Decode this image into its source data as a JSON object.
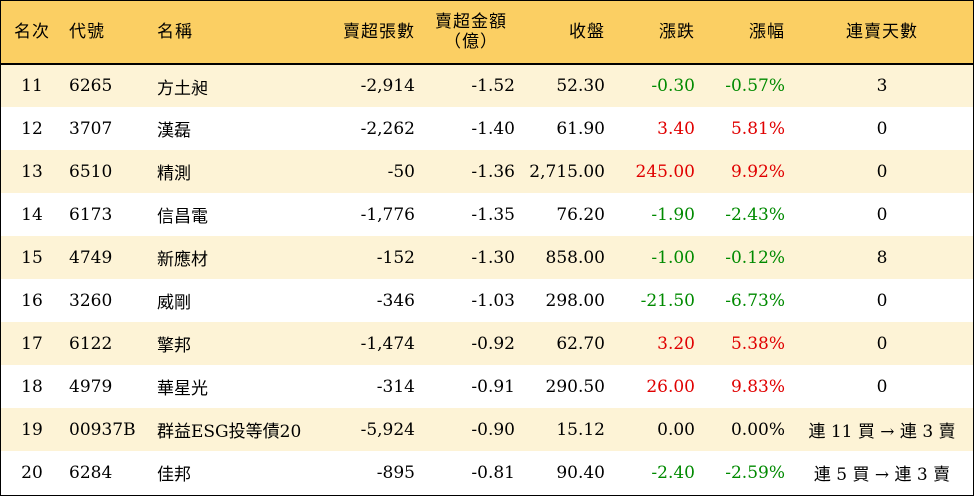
{
  "headers": {
    "rank": "名次",
    "code": "代號",
    "name": "名稱",
    "net_shares": "賣超張數",
    "net_amount_line1": "賣超金額",
    "net_amount_line2": "（億）",
    "close": "收盤",
    "change": "漲跌",
    "change_pct": "漲幅",
    "streak": "連賣天數"
  },
  "rows": [
    {
      "rank": "11",
      "code": "6265",
      "name": "方土昶",
      "net_shares": "-2,914",
      "net_amount": "-1.52",
      "close": "52.30",
      "change": "-0.30",
      "change_pct": "-0.57%",
      "streak": "3",
      "trend": "neg"
    },
    {
      "rank": "12",
      "code": "3707",
      "name": "漢磊",
      "net_shares": "-2,262",
      "net_amount": "-1.40",
      "close": "61.90",
      "change": "3.40",
      "change_pct": "5.81%",
      "streak": "0",
      "trend": "pos"
    },
    {
      "rank": "13",
      "code": "6510",
      "name": "精測",
      "net_shares": "-50",
      "net_amount": "-1.36",
      "close": "2,715.00",
      "change": "245.00",
      "change_pct": "9.92%",
      "streak": "0",
      "trend": "pos"
    },
    {
      "rank": "14",
      "code": "6173",
      "name": "信昌電",
      "net_shares": "-1,776",
      "net_amount": "-1.35",
      "close": "76.20",
      "change": "-1.90",
      "change_pct": "-2.43%",
      "streak": "0",
      "trend": "neg"
    },
    {
      "rank": "15",
      "code": "4749",
      "name": "新應材",
      "net_shares": "-152",
      "net_amount": "-1.30",
      "close": "858.00",
      "change": "-1.00",
      "change_pct": "-0.12%",
      "streak": "8",
      "trend": "neg"
    },
    {
      "rank": "16",
      "code": "3260",
      "name": "威剛",
      "net_shares": "-346",
      "net_amount": "-1.03",
      "close": "298.00",
      "change": "-21.50",
      "change_pct": "-6.73%",
      "streak": "0",
      "trend": "neg"
    },
    {
      "rank": "17",
      "code": "6122",
      "name": "擎邦",
      "net_shares": "-1,474",
      "net_amount": "-0.92",
      "close": "62.70",
      "change": "3.20",
      "change_pct": "5.38%",
      "streak": "0",
      "trend": "pos"
    },
    {
      "rank": "18",
      "code": "4979",
      "name": "華星光",
      "net_shares": "-314",
      "net_amount": "-0.91",
      "close": "290.50",
      "change": "26.00",
      "change_pct": "9.83%",
      "streak": "0",
      "trend": "pos"
    },
    {
      "rank": "19",
      "code": "00937B",
      "name": "群益ESG投等債20",
      "net_shares": "-5,924",
      "net_amount": "-0.90",
      "close": "15.12",
      "change": "0.00",
      "change_pct": "0.00%",
      "streak": "連 11 買 → 連 3 賣",
      "trend": "zero"
    },
    {
      "rank": "20",
      "code": "6284",
      "name": "佳邦",
      "net_shares": "-895",
      "net_amount": "-0.81",
      "close": "90.40",
      "change": "-2.40",
      "change_pct": "-2.59%",
      "streak": "連 5 買 → 連 3 賣",
      "trend": "neg"
    }
  ],
  "colors": {
    "header_bg": "#fbcf63",
    "odd_row_bg": "#fdf3d6",
    "even_row_bg": "#ffffff",
    "up": "#e00000",
    "down": "#008a00"
  }
}
